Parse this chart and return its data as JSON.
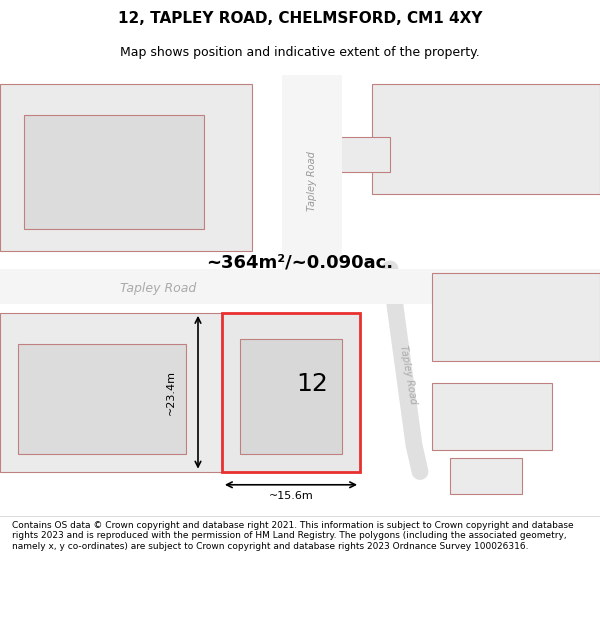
{
  "title": "12, TAPLEY ROAD, CHELMSFORD, CM1 4XY",
  "subtitle": "Map shows position and indicative extent of the property.",
  "area_text": "~364m²/~0.090ac.",
  "number_label": "12",
  "dim_width": "~15.6m",
  "dim_height": "~23.4m",
  "road_label_top": "Tapley Road",
  "road_label_left": "Tapley Road",
  "road_label_right": "Tapley Road",
  "footer_text": "Contains OS data © Crown copyright and database right 2021. This information is subject to Crown copyright and database rights 2023 and is reproduced with the permission of HM Land Registry. The polygons (including the associated geometry, namely x, y co-ordinates) are subject to Crown copyright and database rights 2023 Ordnance Survey 100026316.",
  "bg_color": "#f0f0f0",
  "map_bg": "#e8e8e8",
  "plot_fill": "#e0e0e0",
  "building_fill": "#d0d0d0",
  "red_color": "#e83030",
  "gray_outline": "#c0a0a0",
  "footer_bg": "#ffffff"
}
